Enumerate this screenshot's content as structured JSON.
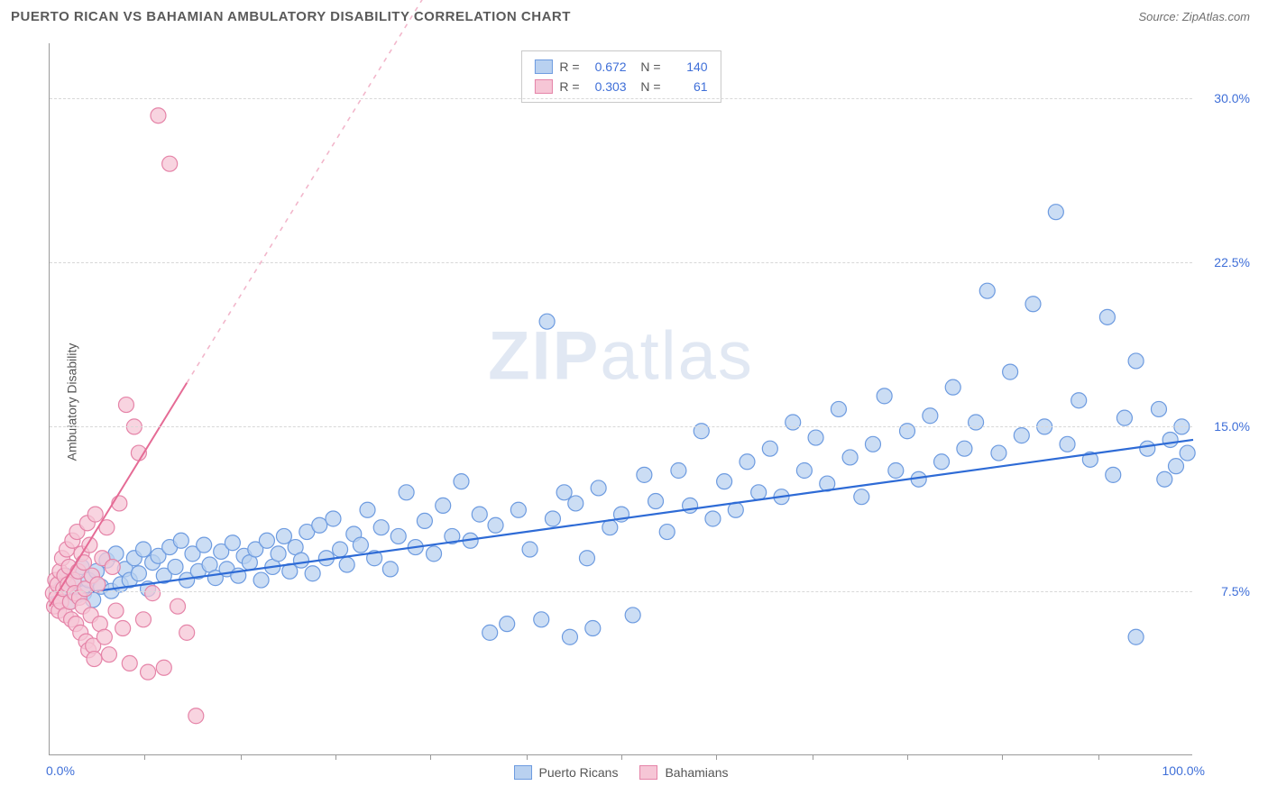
{
  "header": {
    "title": "PUERTO RICAN VS BAHAMIAN AMBULATORY DISABILITY CORRELATION CHART",
    "source": "Source: ZipAtlas.com"
  },
  "chart": {
    "type": "scatter",
    "ylabel": "Ambulatory Disability",
    "background_color": "#ffffff",
    "grid_color": "#d8d8d8",
    "axis_color": "#9a9a9a",
    "label_color": "#555555",
    "tick_label_color": "#3f6fd8",
    "watermark_text_a": "ZIP",
    "watermark_text_b": "atlas",
    "watermark_color": "rgba(120,150,200,0.22)",
    "xlim": [
      0,
      100
    ],
    "ylim": [
      0,
      32.5
    ],
    "xaxis_min_label": "0.0%",
    "xaxis_max_label": "100.0%",
    "yticks": [
      {
        "value": 7.5,
        "label": "7.5%"
      },
      {
        "value": 15.0,
        "label": "15.0%"
      },
      {
        "value": 22.5,
        "label": "22.5%"
      },
      {
        "value": 30.0,
        "label": "30.0%"
      }
    ],
    "xticks_minor": [
      8.3,
      16.7,
      25,
      33.3,
      41.7,
      50,
      58.3,
      66.7,
      75,
      83.3,
      91.7
    ],
    "marker_radius": 8.5,
    "marker_stroke_width": 1.2,
    "series": [
      {
        "key": "puerto_ricans",
        "name": "Puerto Ricans",
        "fill_color": "#b9d1f0",
        "stroke_color": "#6d9be0",
        "R": "0.672",
        "N": "140",
        "trend": {
          "x1": 0,
          "y1": 7.2,
          "x2": 100,
          "y2": 14.4,
          "color": "#2e6bd6",
          "width": 2.2,
          "dash_after_x": 200
        },
        "points": [
          [
            1.0,
            7.6
          ],
          [
            1.4,
            8.2
          ],
          [
            1.8,
            7.0
          ],
          [
            2.1,
            7.9
          ],
          [
            2.4,
            7.3
          ],
          [
            2.8,
            8.6
          ],
          [
            3.0,
            7.4
          ],
          [
            3.4,
            8.0
          ],
          [
            3.8,
            7.1
          ],
          [
            4.1,
            8.4
          ],
          [
            4.5,
            7.7
          ],
          [
            5.0,
            8.9
          ],
          [
            5.4,
            7.5
          ],
          [
            5.8,
            9.2
          ],
          [
            6.2,
            7.8
          ],
          [
            6.6,
            8.5
          ],
          [
            7.0,
            8.0
          ],
          [
            7.4,
            9.0
          ],
          [
            7.8,
            8.3
          ],
          [
            8.2,
            9.4
          ],
          [
            8.6,
            7.6
          ],
          [
            9.0,
            8.8
          ],
          [
            9.5,
            9.1
          ],
          [
            10.0,
            8.2
          ],
          [
            10.5,
            9.5
          ],
          [
            11.0,
            8.6
          ],
          [
            11.5,
            9.8
          ],
          [
            12.0,
            8.0
          ],
          [
            12.5,
            9.2
          ],
          [
            13.0,
            8.4
          ],
          [
            13.5,
            9.6
          ],
          [
            14.0,
            8.7
          ],
          [
            14.5,
            8.1
          ],
          [
            15.0,
            9.3
          ],
          [
            15.5,
            8.5
          ],
          [
            16.0,
            9.7
          ],
          [
            16.5,
            8.2
          ],
          [
            17.0,
            9.1
          ],
          [
            17.5,
            8.8
          ],
          [
            18.0,
            9.4
          ],
          [
            18.5,
            8.0
          ],
          [
            19.0,
            9.8
          ],
          [
            19.5,
            8.6
          ],
          [
            20.0,
            9.2
          ],
          [
            20.5,
            10.0
          ],
          [
            21.0,
            8.4
          ],
          [
            21.5,
            9.5
          ],
          [
            22.0,
            8.9
          ],
          [
            22.5,
            10.2
          ],
          [
            23.0,
            8.3
          ],
          [
            23.6,
            10.5
          ],
          [
            24.2,
            9.0
          ],
          [
            24.8,
            10.8
          ],
          [
            25.4,
            9.4
          ],
          [
            26.0,
            8.7
          ],
          [
            26.6,
            10.1
          ],
          [
            27.2,
            9.6
          ],
          [
            27.8,
            11.2
          ],
          [
            28.4,
            9.0
          ],
          [
            29.0,
            10.4
          ],
          [
            29.8,
            8.5
          ],
          [
            30.5,
            10.0
          ],
          [
            31.2,
            12.0
          ],
          [
            32.0,
            9.5
          ],
          [
            32.8,
            10.7
          ],
          [
            33.6,
            9.2
          ],
          [
            34.4,
            11.4
          ],
          [
            35.2,
            10.0
          ],
          [
            36.0,
            12.5
          ],
          [
            36.8,
            9.8
          ],
          [
            37.6,
            11.0
          ],
          [
            38.5,
            5.6
          ],
          [
            39.0,
            10.5
          ],
          [
            40.0,
            6.0
          ],
          [
            41.0,
            11.2
          ],
          [
            42.0,
            9.4
          ],
          [
            43.0,
            6.2
          ],
          [
            43.5,
            19.8
          ],
          [
            44.0,
            10.8
          ],
          [
            45.0,
            12.0
          ],
          [
            45.5,
            5.4
          ],
          [
            46.0,
            11.5
          ],
          [
            47.0,
            9.0
          ],
          [
            47.5,
            5.8
          ],
          [
            48.0,
            12.2
          ],
          [
            49.0,
            10.4
          ],
          [
            50.0,
            11.0
          ],
          [
            51.0,
            6.4
          ],
          [
            52.0,
            12.8
          ],
          [
            53.0,
            11.6
          ],
          [
            54.0,
            10.2
          ],
          [
            55.0,
            13.0
          ],
          [
            56.0,
            11.4
          ],
          [
            57.0,
            14.8
          ],
          [
            58.0,
            10.8
          ],
          [
            59.0,
            12.5
          ],
          [
            60.0,
            11.2
          ],
          [
            61.0,
            13.4
          ],
          [
            62.0,
            12.0
          ],
          [
            63.0,
            14.0
          ],
          [
            64.0,
            11.8
          ],
          [
            65.0,
            15.2
          ],
          [
            66.0,
            13.0
          ],
          [
            67.0,
            14.5
          ],
          [
            68.0,
            12.4
          ],
          [
            69.0,
            15.8
          ],
          [
            70.0,
            13.6
          ],
          [
            71.0,
            11.8
          ],
          [
            72.0,
            14.2
          ],
          [
            73.0,
            16.4
          ],
          [
            74.0,
            13.0
          ],
          [
            75.0,
            14.8
          ],
          [
            76.0,
            12.6
          ],
          [
            77.0,
            15.5
          ],
          [
            78.0,
            13.4
          ],
          [
            79.0,
            16.8
          ],
          [
            80.0,
            14.0
          ],
          [
            81.0,
            15.2
          ],
          [
            82.0,
            21.2
          ],
          [
            83.0,
            13.8
          ],
          [
            84.0,
            17.5
          ],
          [
            85.0,
            14.6
          ],
          [
            86.0,
            20.6
          ],
          [
            87.0,
            15.0
          ],
          [
            88.0,
            24.8
          ],
          [
            89.0,
            14.2
          ],
          [
            90.0,
            16.2
          ],
          [
            91.0,
            13.5
          ],
          [
            92.5,
            20.0
          ],
          [
            93.0,
            12.8
          ],
          [
            94.0,
            15.4
          ],
          [
            95.0,
            18.0
          ],
          [
            95.0,
            5.4
          ],
          [
            96.0,
            14.0
          ],
          [
            97.0,
            15.8
          ],
          [
            97.5,
            12.6
          ],
          [
            98.0,
            14.4
          ],
          [
            98.5,
            13.2
          ],
          [
            99.0,
            15.0
          ],
          [
            99.5,
            13.8
          ]
        ]
      },
      {
        "key": "bahamians",
        "name": "Bahamians",
        "fill_color": "#f6c6d6",
        "stroke_color": "#e584a8",
        "R": "0.303",
        "N": "61",
        "trend": {
          "x1": 0,
          "y1": 6.8,
          "x2": 12,
          "y2": 17.0,
          "extend_dash_to_x": 36,
          "extend_dash_to_y": 37.4,
          "color": "#e56b95",
          "width": 2.0
        },
        "points": [
          [
            0.3,
            7.4
          ],
          [
            0.4,
            6.8
          ],
          [
            0.5,
            8.0
          ],
          [
            0.6,
            7.2
          ],
          [
            0.7,
            7.8
          ],
          [
            0.8,
            6.6
          ],
          [
            0.9,
            8.4
          ],
          [
            1.0,
            7.0
          ],
          [
            1.1,
            9.0
          ],
          [
            1.2,
            7.6
          ],
          [
            1.3,
            8.2
          ],
          [
            1.4,
            6.4
          ],
          [
            1.5,
            9.4
          ],
          [
            1.6,
            7.8
          ],
          [
            1.7,
            8.6
          ],
          [
            1.8,
            7.0
          ],
          [
            1.9,
            6.2
          ],
          [
            2.0,
            9.8
          ],
          [
            2.1,
            8.0
          ],
          [
            2.2,
            7.4
          ],
          [
            2.3,
            6.0
          ],
          [
            2.4,
            10.2
          ],
          [
            2.5,
            8.4
          ],
          [
            2.6,
            7.2
          ],
          [
            2.7,
            5.6
          ],
          [
            2.8,
            9.2
          ],
          [
            2.9,
            6.8
          ],
          [
            3.0,
            8.8
          ],
          [
            3.1,
            7.6
          ],
          [
            3.2,
            5.2
          ],
          [
            3.3,
            10.6
          ],
          [
            3.4,
            4.8
          ],
          [
            3.5,
            9.6
          ],
          [
            3.6,
            6.4
          ],
          [
            3.7,
            8.2
          ],
          [
            3.8,
            5.0
          ],
          [
            3.9,
            4.4
          ],
          [
            4.0,
            11.0
          ],
          [
            4.2,
            7.8
          ],
          [
            4.4,
            6.0
          ],
          [
            4.6,
            9.0
          ],
          [
            4.8,
            5.4
          ],
          [
            5.0,
            10.4
          ],
          [
            5.2,
            4.6
          ],
          [
            5.5,
            8.6
          ],
          [
            5.8,
            6.6
          ],
          [
            6.1,
            11.5
          ],
          [
            6.4,
            5.8
          ],
          [
            6.7,
            16.0
          ],
          [
            7.0,
            4.2
          ],
          [
            7.4,
            15.0
          ],
          [
            7.8,
            13.8
          ],
          [
            8.2,
            6.2
          ],
          [
            8.6,
            3.8
          ],
          [
            9.0,
            7.4
          ],
          [
            9.5,
            29.2
          ],
          [
            10.0,
            4.0
          ],
          [
            10.5,
            27.0
          ],
          [
            11.2,
            6.8
          ],
          [
            12.0,
            5.6
          ],
          [
            12.8,
            1.8
          ]
        ]
      }
    ]
  }
}
